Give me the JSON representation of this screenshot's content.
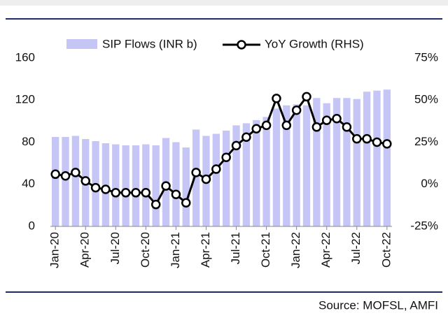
{
  "chart_data": {
    "type": "bar-line",
    "categories": [
      "Jan-20",
      null,
      null,
      "Apr-20",
      null,
      null,
      "Jul-20",
      null,
      null,
      "Oct-20",
      null,
      null,
      "Jan-21",
      null,
      null,
      "Apr-21",
      null,
      null,
      "Jul-21",
      null,
      null,
      "Oct-21",
      null,
      null,
      "Jan-22",
      null,
      null,
      "Apr-22",
      null,
      null,
      "Jul-22",
      null,
      null,
      "Oct-22"
    ],
    "series": [
      {
        "name": "SIP Flows (INR b)",
        "color": "#c6c6f6",
        "values": [
          85,
          85,
          86,
          83,
          81,
          79,
          78,
          77,
          77,
          78,
          77,
          84,
          80,
          75,
          92,
          86,
          88,
          91,
          96,
          98,
          101,
          104,
          112,
          115,
          116,
          115,
          122,
          117,
          122,
          122,
          121,
          128,
          129,
          130
        ]
      },
      {
        "name": "YoY Growth (RHS)",
        "color": "#000000",
        "axis": "y2",
        "values": [
          6,
          5,
          7,
          2,
          -2,
          -3,
          -5,
          -5,
          -5,
          -5,
          -12,
          -1,
          -6,
          -11,
          7,
          3,
          9,
          16,
          23,
          28,
          33,
          35,
          51,
          35,
          44,
          52,
          34,
          38,
          39,
          34,
          27,
          27,
          25,
          24
        ]
      }
    ],
    "ylim": [
      0,
      160
    ],
    "yticks": [
      0,
      40,
      80,
      120,
      160
    ],
    "y2lim": [
      -25,
      75
    ],
    "y2ticks": [
      {
        "value": -25,
        "label": "-25%"
      },
      {
        "value": 0,
        "label": "0%"
      },
      {
        "value": 25,
        "label": "25%"
      },
      {
        "value": 50,
        "label": "50%"
      },
      {
        "value": 75,
        "label": "75%"
      }
    ],
    "source": "Source: MOFSL, AMFI"
  }
}
